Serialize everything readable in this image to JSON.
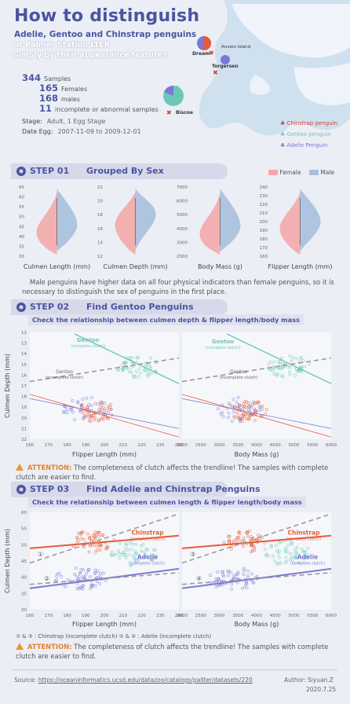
{
  "header": {
    "title": "How to distinguish",
    "subtitle": "Adelie, Gentoo and Chinstrap penguins",
    "line3": "at Palmer Station LTER",
    "line4": "simply by their appearance features"
  },
  "stats": [
    {
      "value": "344",
      "label": "Samples"
    },
    {
      "value": "165",
      "label": "Females"
    },
    {
      "value": "168",
      "label": "males"
    },
    {
      "value": "11",
      "label": "incomplete or abnormal samples"
    }
  ],
  "meta": {
    "stage_key": "Stage:",
    "stage_val": "Adult, 1 Egg Stage",
    "date_key": "Date Egg:",
    "date_val": "2007-11-09 to 2009-12-01"
  },
  "map": {
    "islands": [
      "Anvers Island",
      "Dream",
      "Torgersen",
      "Biscoe"
    ],
    "legend": [
      "Chinstrap penguin",
      "Gentoo penguin",
      "Adelie Penguin"
    ]
  },
  "colors": {
    "female": "#f4a8a8",
    "male": "#a8bfdc",
    "gentoo": "#6ac8b8",
    "chinstrap": "#e85a35",
    "adelie": "#7b78d4",
    "dash": "#999999",
    "accent": "#4a55a0"
  },
  "step1": {
    "num": "STEP 01",
    "name": "Grouped By Sex",
    "legend": [
      "Female",
      "Male"
    ],
    "chart_data": [
      {
        "type": "violin",
        "xlabel": "Culmen Length (mm)",
        "ylim": [
          30,
          65
        ],
        "ticks": [
          "65",
          "60",
          "55",
          "50",
          "45",
          "40",
          "35",
          "30"
        ],
        "series": [
          {
            "name": "Female",
            "center": 42
          },
          {
            "name": "Male",
            "center": 46
          }
        ]
      },
      {
        "type": "violin",
        "xlabel": "Culmen Depth (mm)",
        "ylim": [
          12,
          22
        ],
        "ticks": [
          "22",
          "20",
          "18",
          "16",
          "14",
          "12"
        ],
        "series": [
          {
            "name": "Female",
            "center": 16.5
          },
          {
            "name": "Male",
            "center": 18
          }
        ]
      },
      {
        "type": "violin",
        "xlabel": "Body Mass (g)",
        "ylim": [
          2000,
          7000
        ],
        "ticks": [
          "7000",
          "6000",
          "5000",
          "4000",
          "3000",
          "2000"
        ],
        "series": [
          {
            "name": "Female",
            "center": 3600
          },
          {
            "name": "Male",
            "center": 4200
          }
        ]
      },
      {
        "type": "violin",
        "xlabel": "Flipper Length (mm)",
        "ylim": [
          160,
          240
        ],
        "ticks": [
          "240",
          "230",
          "220",
          "210",
          "200",
          "190",
          "180",
          "170",
          "160"
        ],
        "series": [
          {
            "name": "Female",
            "center": 192
          },
          {
            "name": "Male",
            "center": 200
          }
        ]
      }
    ],
    "text": "Male penguins have higher data on all four physical indicators than female penguins, so it is necessary to distinguish the sex of penguins in the first place."
  },
  "step2": {
    "num": "STEP 02",
    "name": "Find Gentoo Penguins",
    "sub": "Check the relationship between culmen depth & flipper length/body mass",
    "ylabel": "Culmen Depth (mm)",
    "chart_data": [
      {
        "type": "scatter",
        "xlabel": "Flipper Length (mm)",
        "xlim": [
          160,
          240
        ],
        "xticks": [
          "160",
          "170",
          "180",
          "190",
          "200",
          "210",
          "220",
          "230",
          "240"
        ],
        "yticks": [
          "12",
          "13",
          "14",
          "15",
          "16",
          "17",
          "18",
          "19",
          "20",
          "21",
          "22"
        ]
      },
      {
        "type": "scatter",
        "xlabel": "Body Mass (g)",
        "xlim": [
          2000,
          6000
        ],
        "xticks": [
          "2000",
          "2500",
          "3000",
          "3500",
          "4000",
          "4500",
          "5000",
          "5500",
          "6000"
        ]
      }
    ],
    "labels": {
      "gentoo_c": "Gentoo",
      "gentoo_c_sub": "(complete clutch)",
      "gentoo_i": "Gentoo",
      "gentoo_i_sub": "(incomplete clutch)"
    },
    "warn_key": "ATTENTION:",
    "warn_text": "The completeness of clutch affects the trendline! The samples with complete clutch are easier to find."
  },
  "step3": {
    "num": "STEP 03",
    "name": "Find Adelie and Chinstrap Penguins",
    "sub": "Check the relationship between culmen length & flipper length/body mass",
    "ylabel": "Culmen Depth (mm)",
    "chart_data": [
      {
        "type": "scatter",
        "xlabel": "Flipper Length (mm)",
        "xlim": [
          160,
          240
        ],
        "xticks": [
          "160",
          "170",
          "180",
          "190",
          "200",
          "210",
          "220",
          "230",
          "240"
        ],
        "yticks": [
          "60",
          "55",
          "50",
          "45",
          "40",
          "35",
          "30"
        ]
      },
      {
        "type": "scatter",
        "xlabel": "Body Mass (g)",
        "xlim": [
          2000,
          6000
        ],
        "xticks": [
          "2000",
          "2500",
          "3000",
          "3500",
          "4000",
          "4500",
          "5000",
          "5500",
          "6000"
        ]
      }
    ],
    "labels": {
      "chinstrap": "Chinstrap",
      "chinstrap_sub": "(complete clutch)",
      "adelie": "Adelie",
      "adelie_sub": "(complete clutch)",
      "n1": "①",
      "n2": "②",
      "n3": "③",
      "n4": "④"
    },
    "note": "① & ③ : Chinstrap (incomplete clutch)   ② & ④ : Adelie (incomplete clutch)",
    "warn_key": "ATTENTION:",
    "warn_text": "The completeness of clutch affects the trendline! The samples with complete clutch are easier to find."
  },
  "footer": {
    "source_key": "Source:",
    "source_val": "https://oceaninformatics.ucsd.edu/datazoo/catalogs/pallter/datasets/220",
    "author": "Author: Siyuan.Z",
    "date": "2020.7.25"
  }
}
